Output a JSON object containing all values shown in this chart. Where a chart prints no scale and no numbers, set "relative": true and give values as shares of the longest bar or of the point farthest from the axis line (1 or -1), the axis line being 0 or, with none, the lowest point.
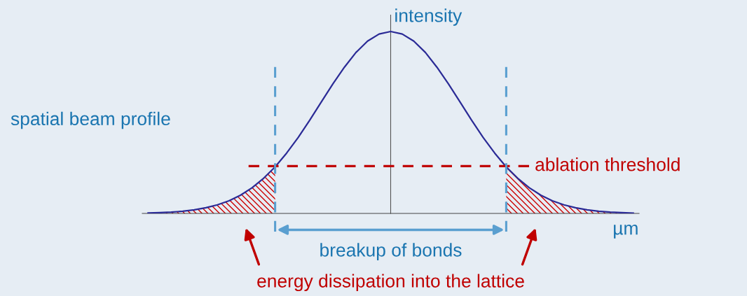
{
  "chart_data": {
    "type": "line",
    "relative": true,
    "title": "spatial beam profile",
    "xlabel": "µm",
    "ylabel": "intensity",
    "categories": [
      null,
      null,
      null,
      null,
      null,
      null,
      null,
      null,
      null,
      null,
      null,
      null,
      null,
      null,
      null,
      null,
      null,
      null,
      null,
      null,
      null,
      null,
      null,
      null,
      null,
      null,
      null,
      null,
      null,
      null,
      null,
      null,
      null,
      null,
      null,
      null,
      null,
      null,
      null,
      null,
      null,
      null,
      null
    ],
    "series": [
      {
        "color": "#2b2b96",
        "values": [
          0.002,
          0.004,
          0.007,
          0.012,
          0.02,
          0.031,
          0.047,
          0.069,
          0.1,
          0.141,
          0.193,
          0.256,
          0.332,
          0.418,
          0.513,
          0.613,
          0.712,
          0.804,
          0.885,
          0.947,
          0.986,
          1.0,
          0.986,
          0.947,
          0.885,
          0.804,
          0.712,
          0.613,
          0.513,
          0.418,
          0.332,
          0.256,
          0.193,
          0.141,
          0.1,
          0.069,
          0.047,
          0.031,
          0.02,
          0.012,
          0.007,
          0.004,
          0.002
        ]
      },
      {
        "type": "area",
        "color": "#cc0000",
        "values": [
          0.002,
          0.004,
          0.007,
          0.012,
          0.02,
          0.031,
          0.047,
          0.069,
          0.1,
          0.141,
          0.193,
          0.256,
          null,
          null,
          null,
          null,
          null,
          null,
          null,
          null,
          null,
          null,
          null,
          null,
          null,
          null,
          null,
          null,
          null,
          null,
          null,
          null,
          null,
          null,
          null,
          null,
          null,
          null,
          null,
          null,
          null,
          null,
          null
        ]
      },
      {
        "type": "area",
        "color": "#cc0000",
        "values": [
          null,
          null,
          null,
          null,
          null,
          null,
          null,
          null,
          null,
          null,
          null,
          null,
          null,
          null,
          null,
          null,
          null,
          null,
          null,
          null,
          null,
          null,
          null,
          null,
          null,
          null,
          null,
          null,
          null,
          null,
          null,
          0.256,
          0.193,
          0.141,
          0.1,
          0.069,
          0.047,
          0.031,
          0.02,
          0.012,
          0.007,
          0.004,
          0.002
        ]
      }
    ],
    "ref_lines": [
      {
        "axis": "y",
        "value": 0.26,
        "label": "ablation threshold",
        "color": "#c00000",
        "line_style": "dashed"
      }
    ],
    "annotations": [
      "breakup of bonds",
      "energy dissipation into the lattice"
    ]
  }
}
